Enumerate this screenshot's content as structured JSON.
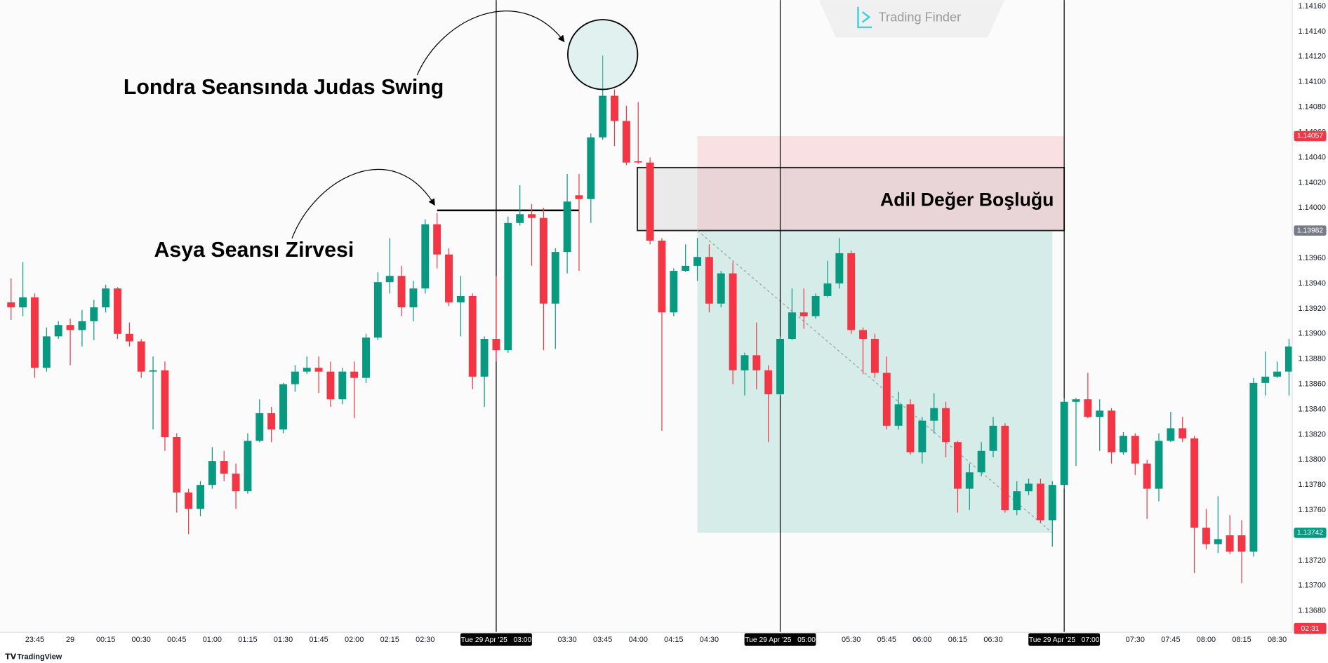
{
  "watermark": "Trading Finder",
  "footer": "TradingView",
  "chart_data": {
    "type": "candlestick",
    "categories": [
      null,
      null,
      "23:45",
      null,
      null,
      "29",
      null,
      null,
      "00:15",
      null,
      null,
      "00:30",
      null,
      null,
      "00:45",
      null,
      null,
      "01:00",
      null,
      null,
      "01:15",
      null,
      null,
      "01:30",
      null,
      null,
      "01:45",
      null,
      null,
      "02:00",
      null,
      null,
      "02:15",
      null,
      null,
      "02:30",
      null,
      null,
      null,
      null,
      null,
      "Tue 29 Apr '25   03:00",
      null,
      null,
      null,
      null,
      null,
      "03:30",
      null,
      null,
      "03:45",
      null,
      null,
      "04:00",
      null,
      null,
      "04:15",
      null,
      null,
      "04:30",
      null,
      null,
      null,
      null,
      null,
      "Tue 29 Apr '25   05:00",
      null,
      null,
      null,
      null,
      null,
      "05:30",
      null,
      null,
      "05:45",
      null,
      null,
      "06:00",
      null,
      null,
      "06:15",
      null,
      null,
      "06:30",
      null,
      null,
      null,
      null,
      null,
      "Tue 29 Apr '25   07:00",
      null,
      null,
      null,
      null,
      null,
      "07:30",
      null,
      null,
      "07:45",
      null,
      null,
      "08:00",
      null,
      null,
      "08:15",
      null,
      null,
      "08:30",
      null
    ],
    "open": [
      1.13925,
      1.13921,
      1.13929,
      1.13873,
      1.13898,
      1.13907,
      1.13903,
      1.1391,
      1.13921,
      1.13936,
      1.139,
      1.13894,
      1.1387,
      1.13871,
      1.13818,
      1.13774,
      1.13761,
      1.1378,
      1.13799,
      1.13789,
      1.13775,
      1.13815,
      1.13837,
      1.13824,
      1.1386,
      1.1387,
      1.13873,
      1.1387,
      1.13848,
      1.1387,
      1.13865,
      1.13897,
      1.13941,
      1.13946,
      1.13921,
      1.13936,
      1.13987,
      1.13963,
      1.13925,
      1.1393,
      1.13866,
      1.13896,
      1.13887,
      1.13988,
      1.13995,
      1.13992,
      1.13924,
      1.13965,
      1.1401,
      1.14007,
      1.14056,
      1.14089,
      1.14069,
      1.14037,
      1.14036,
      1.13974,
      1.13917,
      1.1395,
      1.13954,
      1.13961,
      1.13924,
      1.13948,
      1.13871,
      1.13883,
      1.13871,
      1.13852,
      1.13896,
      1.13917,
      1.13914,
      1.1393,
      1.1394,
      1.13964,
      1.13903,
      1.13896,
      1.13869,
      1.13827,
      1.13844,
      1.13806,
      1.13831,
      1.13841,
      1.13814,
      1.13777,
      1.1379,
      1.13807,
      1.13827,
      1.1376,
      1.13775,
      1.13781,
      1.13752,
      1.1378,
      1.13846,
      1.13848,
      1.13834,
      1.13839,
      1.13806,
      1.13819,
      1.13797,
      1.13777,
      1.13815,
      1.13825,
      1.13817,
      1.13746,
      1.13733,
      1.1374,
      1.1374,
      1.13727,
      1.13861,
      1.13866,
      1.1387
    ],
    "high": [
      1.13944,
      1.13957,
      1.13932,
      1.13905,
      1.1391,
      1.13912,
      1.13919,
      1.13927,
      1.13939,
      1.13937,
      1.13909,
      1.13896,
      1.13882,
      1.13878,
      1.13821,
      1.13777,
      1.13783,
      1.1381,
      1.13807,
      1.13797,
      1.13821,
      1.13848,
      1.13842,
      1.13861,
      1.13875,
      1.13882,
      1.13882,
      1.13878,
      1.13873,
      1.13878,
      1.139,
      1.13949,
      1.13976,
      1.13954,
      1.13942,
      1.13991,
      1.13996,
      1.13968,
      1.13946,
      1.13932,
      1.13898,
      1.13946,
      1.13993,
      1.14018,
      1.14003,
      1.14,
      1.13968,
      1.14027,
      1.14027,
      1.14059,
      1.14121,
      1.14094,
      1.14081,
      1.14084,
      1.1404,
      1.13976,
      1.13952,
      1.13971,
      1.13976,
      1.13971,
      1.1395,
      1.13957,
      1.13885,
      1.13909,
      1.13875,
      1.13898,
      1.13936,
      1.13936,
      1.13932,
      1.13958,
      1.13976,
      1.13966,
      1.13905,
      1.139,
      1.13882,
      1.13854,
      1.13848,
      1.13834,
      1.13853,
      1.13846,
      1.13815,
      1.13797,
      1.13814,
      1.13834,
      1.13829,
      1.13783,
      1.13785,
      1.13785,
      1.13783,
      1.13849,
      1.13849,
      1.13869,
      1.13848,
      1.13841,
      1.13822,
      1.13821,
      1.138,
      1.13821,
      1.13838,
      1.13834,
      1.13819,
      1.13761,
      1.13771,
      1.13756,
      1.13752,
      1.13865,
      1.13886,
      1.13878,
      1.13896
    ],
    "low": [
      1.13911,
      1.13914,
      1.13865,
      1.1387,
      1.13896,
      1.13875,
      1.1389,
      1.13895,
      1.13917,
      1.13896,
      1.1389,
      1.13865,
      1.13824,
      1.13807,
      1.13758,
      1.13741,
      1.13755,
      1.13777,
      1.13783,
      1.13761,
      1.13773,
      1.13814,
      1.13814,
      1.13821,
      1.13854,
      1.13868,
      1.13853,
      1.13842,
      1.13844,
      1.13833,
      1.13861,
      1.13895,
      1.13932,
      1.13914,
      1.1391,
      1.13932,
      1.13952,
      1.13922,
      1.13898,
      1.13856,
      1.13842,
      1.13878,
      1.13885,
      1.13986,
      1.13954,
      1.13887,
      1.13888,
      1.13948,
      1.1395,
      1.13988,
      1.14054,
      1.14049,
      1.14034,
      1.14035,
      1.13971,
      1.13823,
      1.13914,
      1.13949,
      1.13942,
      1.13917,
      1.13921,
      1.1386,
      1.13851,
      1.13856,
      1.13814,
      1.13851,
      1.13895,
      1.13904,
      1.13912,
      1.13929,
      1.13936,
      1.139,
      1.13868,
      1.13865,
      1.13824,
      1.13824,
      1.13804,
      1.13797,
      1.13821,
      1.13802,
      1.13758,
      1.1376,
      1.13787,
      1.13802,
      1.13758,
      1.13756,
      1.13772,
      1.1375,
      1.13731,
      1.13777,
      1.13795,
      1.13833,
      1.13807,
      1.13797,
      1.13804,
      1.13788,
      1.13753,
      1.13767,
      1.13814,
      1.13814,
      1.1371,
      1.13729,
      1.13726,
      1.13725,
      1.13702,
      1.13723,
      1.13851,
      1.13865,
      1.13851
    ],
    "close": [
      1.13921,
      1.13929,
      1.13873,
      1.13898,
      1.13907,
      1.13903,
      1.1391,
      1.13921,
      1.13936,
      1.139,
      1.13894,
      1.1387,
      1.13871,
      1.13818,
      1.13774,
      1.13761,
      1.1378,
      1.13799,
      1.13789,
      1.13775,
      1.13815,
      1.13837,
      1.13824,
      1.1386,
      1.1387,
      1.13873,
      1.1387,
      1.13848,
      1.1387,
      1.13865,
      1.13897,
      1.13941,
      1.13946,
      1.13921,
      1.13936,
      1.13987,
      1.13963,
      1.13925,
      1.1393,
      1.13866,
      1.13896,
      1.13887,
      1.13988,
      1.13995,
      1.13992,
      1.13924,
      1.13965,
      1.14005,
      1.14007,
      1.14056,
      1.14089,
      1.14069,
      1.14036,
      1.14036,
      1.13974,
      1.13917,
      1.1395,
      1.13954,
      1.13961,
      1.13924,
      1.13948,
      1.13871,
      1.13883,
      1.13871,
      1.13852,
      1.13896,
      1.13917,
      1.13914,
      1.1393,
      1.1394,
      1.13964,
      1.13903,
      1.13896,
      1.13869,
      1.13827,
      1.13844,
      1.13806,
      1.13831,
      1.13841,
      1.13814,
      1.13777,
      1.1379,
      1.13807,
      1.13827,
      1.1376,
      1.13775,
      1.13781,
      1.13752,
      1.1378,
      1.13846,
      1.13848,
      1.13834,
      1.13839,
      1.13806,
      1.13819,
      1.13797,
      1.13777,
      1.13815,
      1.13825,
      1.13817,
      1.13746,
      1.13733,
      1.13737,
      1.13727,
      1.13727,
      1.13861,
      1.13866,
      1.1387,
      1.1389
    ],
    "up_color": "#089981",
    "down_color": "#f23645",
    "ylim": [
      1.13663,
      1.14165
    ],
    "yticks": [
      {
        "value": 1.1416,
        "label": "1.14160"
      },
      {
        "value": 1.1414,
        "label": "1.14140"
      },
      {
        "value": 1.1412,
        "label": "1.14120"
      },
      {
        "value": 1.141,
        "label": "1.14100"
      },
      {
        "value": 1.1408,
        "label": "1.14080"
      },
      {
        "value": 1.1406,
        "label": "1.14060"
      },
      {
        "value": 1.1404,
        "label": "1.14040"
      },
      {
        "value": 1.1402,
        "label": "1.14020"
      },
      {
        "value": 1.14,
        "label": "1.14000"
      },
      {
        "value": 1.1398,
        "label": "1.13980"
      },
      {
        "value": 1.1396,
        "label": "1.13960"
      },
      {
        "value": 1.1394,
        "label": "1.13940"
      },
      {
        "value": 1.1392,
        "label": "1.13920"
      },
      {
        "value": 1.139,
        "label": "1.13900"
      },
      {
        "value": 1.1388,
        "label": "1.13880"
      },
      {
        "value": 1.1386,
        "label": "1.13860"
      },
      {
        "value": 1.1384,
        "label": "1.13840"
      },
      {
        "value": 1.1382,
        "label": "1.13820"
      },
      {
        "value": 1.138,
        "label": "1.13800"
      },
      {
        "value": 1.1378,
        "label": "1.13780"
      },
      {
        "value": 1.1376,
        "label": "1.13760"
      },
      {
        "value": 1.1374,
        "label": "1.13740"
      },
      {
        "value": 1.1372,
        "label": "1.13720"
      },
      {
        "value": 1.137,
        "label": "1.13700"
      },
      {
        "value": 1.1368,
        "label": "1.13680"
      }
    ],
    "grid": false,
    "countdown": "02:31",
    "judas_label": "Londra Seansında Judas Swing",
    "asia_label": "Asya Seansı Zirvesi",
    "asia_high": 1.13998,
    "fair_value_gap": {
      "label": "Adil Değer Boşluğu",
      "top": 1.14032,
      "bottom": 1.13982
    },
    "position": {
      "stop": 1.14057,
      "entry": 1.13982,
      "target": 1.13742,
      "loss_color": "#f23645",
      "profit_color": "#089981",
      "entry_color": "#787b86"
    }
  }
}
